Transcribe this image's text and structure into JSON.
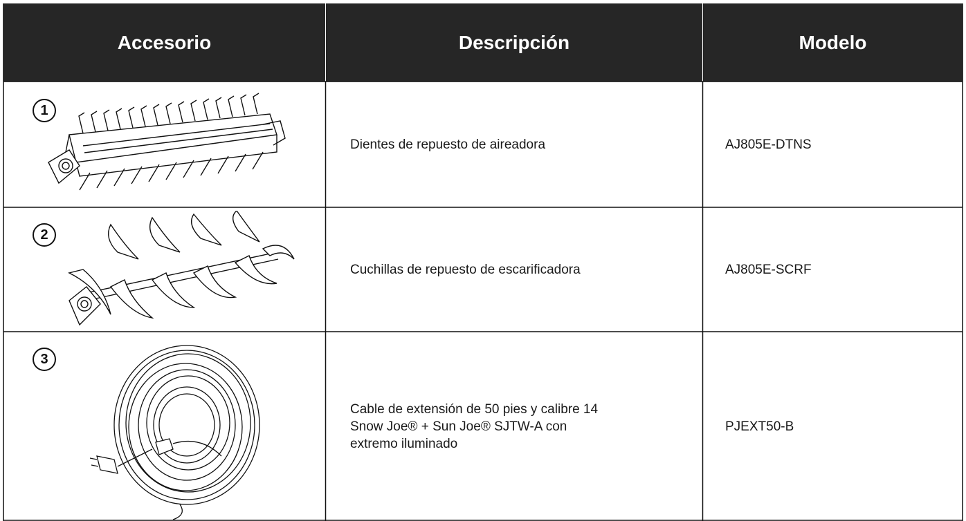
{
  "table": {
    "header": [
      "Accesorio",
      "Descripción",
      "Modelo"
    ],
    "rows": [
      {
        "number": "1",
        "description": [
          "Dientes de repuesto de aireadora"
        ],
        "model": "AJ805E-DTNS"
      },
      {
        "number": "2",
        "description": [
          "Cuchillas de repuesto de escarificadora"
        ],
        "model": "AJ805E-SCRF"
      },
      {
        "number": "3",
        "description": [
          "Cable de extensión de 50 pies y calibre 14",
          "Snow Joe® + Sun Joe® SJTW-A con",
          "extremo iluminado"
        ],
        "model": "PJEXT50-B"
      }
    ]
  }
}
